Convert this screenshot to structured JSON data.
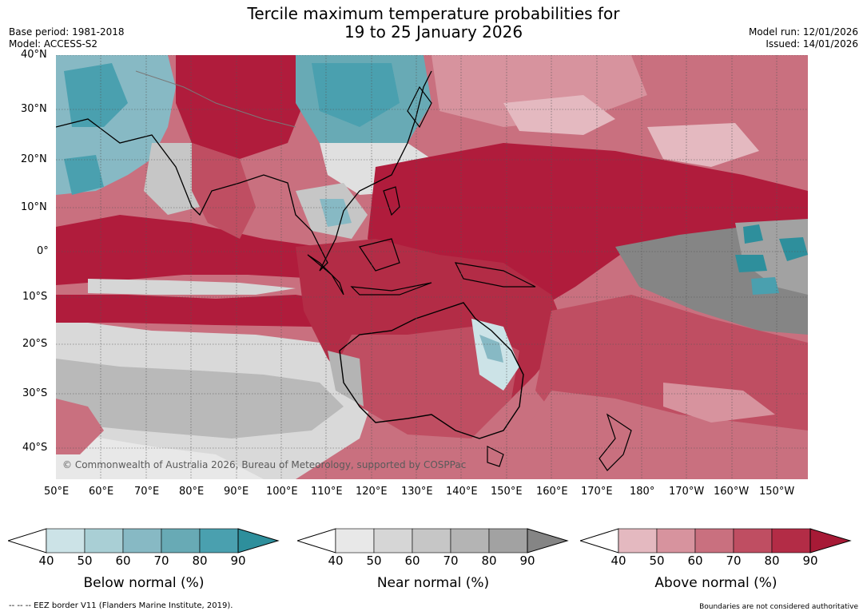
{
  "title": {
    "line1": "Tercile maximum temperature probabilities for",
    "line2": "19 to 25 January 2026"
  },
  "meta": {
    "base_period": "Base period: 1981-2018",
    "model": "Model: ACCESS-S2",
    "model_run": "Model run: 12/01/2026",
    "issued": "Issued: 14/01/2026"
  },
  "map": {
    "copyright": "© Commonwealth of Australia 2026, Bureau of Meteorology, supported by COSPPac",
    "lat_labels": [
      "40°N",
      "30°N",
      "20°N",
      "10°N",
      "0°",
      "10°S",
      "20°S",
      "30°S",
      "40°S"
    ],
    "lon_labels": [
      "50°E",
      "60°E",
      "70°E",
      "80°E",
      "90°E",
      "100°E",
      "110°E",
      "120°E",
      "130°E",
      "140°E",
      "150°E",
      "160°E",
      "170°E",
      "180°",
      "170°W",
      "160°W",
      "150°W"
    ],
    "colors": {
      "above_dominant": "#b01c3c",
      "near_dominant": "#8a8a8a",
      "below_dominant": "#2e98a8"
    }
  },
  "colorbars": {
    "ticks": [
      "40",
      "50",
      "60",
      "70",
      "80",
      "90"
    ],
    "below": {
      "label": "Below normal (%)",
      "colors": [
        "#cce3e7",
        "#a9cfd5",
        "#87b9c4",
        "#68aab5",
        "#4aa0af",
        "#2e8f9c"
      ]
    },
    "near": {
      "label": "Near normal (%)",
      "colors": [
        "#e8e8e8",
        "#d6d6d6",
        "#c6c6c6",
        "#b4b4b4",
        "#a2a2a2",
        "#858585"
      ]
    },
    "above": {
      "label": "Above normal (%)",
      "colors": [
        "#e4b9c0",
        "#d7939e",
        "#c9707f",
        "#bf4e62",
        "#b32c46",
        "#a71a36"
      ]
    }
  },
  "footer": {
    "eez_note": "--  --  -- EEZ border V11 (Flanders Marine Institute, 2019).",
    "disclaimer": "Boundaries are not considered authoritative"
  }
}
